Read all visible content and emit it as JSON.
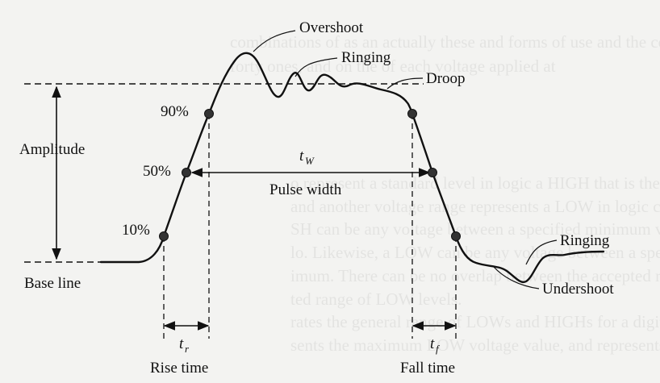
{
  "labels": {
    "overshoot": "Overshoot",
    "ringing_top": "Ringing",
    "droop": "Droop",
    "amplitude": "Amplitude",
    "p90": "90%",
    "p50": "50%",
    "p10": "10%",
    "base_line": "Base line",
    "pulse_width": "Pulse width",
    "rise_time": "Rise time",
    "fall_time": "Fall time",
    "ringing_bottom": "Ringing",
    "undershoot": "Undershoot"
  },
  "symbols": {
    "tw_main": "t",
    "tw_sub": "W",
    "tr_main": "t",
    "tr_sub": "r",
    "tf_main": "t",
    "tf_sub": "f"
  },
  "bleed_through_text": [
    "combinations of as an actually these and forms of use and the combination",
    "forty ones, and on the of each voltage applied at",
    "",
    "",
    "",
    "",
    "o represent a standard level in logic a HIGH that is the of voltages",
    "and another voltage range represents a LOW in logic circuits. Typically",
    "SH can be any voltage between a specified minimum value and a spe",
    "lo. Likewise, a LOW can be any voltage between a specified minimum",
    "imum. There can be no overlap between the accepted range of HIGH",
    "ted range of LOW levels.",
    "rates the general range of LOWs and HIGHs for a digital circuit",
    "sents the maximum LOW voltage value, and represents the"
  ],
  "colors": {
    "ink": "#111111",
    "paper": "#f3f3f1"
  }
}
